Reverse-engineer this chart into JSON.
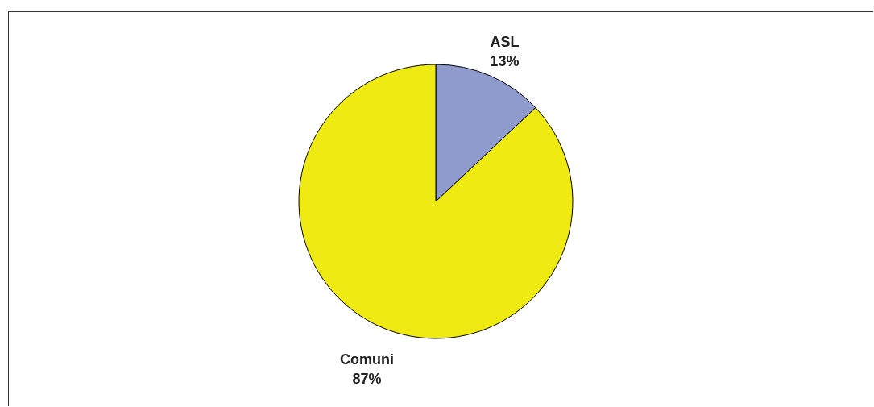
{
  "chart_data": {
    "type": "pie",
    "categories": [
      "ASL",
      "Comuni"
    ],
    "values": [
      13,
      87
    ],
    "colors": [
      "#8f9acd",
      "#eeea12"
    ],
    "value_labels": [
      "13%",
      "87%"
    ],
    "legend": false
  }
}
